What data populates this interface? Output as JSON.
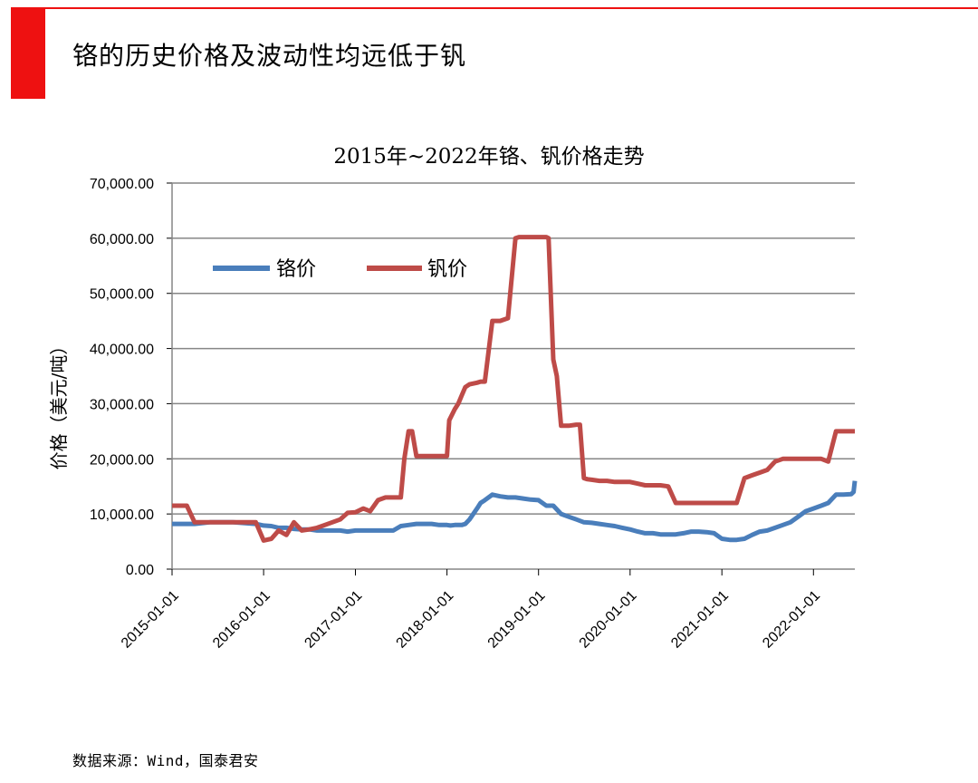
{
  "slide": {
    "title": "铬的历史价格及波动性均远低于钒",
    "source": "数据来源：Wind，国泰君安"
  },
  "colors": {
    "accent": "#ee1111",
    "chromium": "#4a7ebb",
    "vanadium": "#be4b48",
    "grid": "#868686"
  },
  "chart_data": {
    "type": "line",
    "title": "2015年~2022年铬、钒价格走势",
    "xlabel": "",
    "ylabel": "价格（美元/吨）",
    "ylim": [
      0,
      70000
    ],
    "yticks": [
      0,
      10000,
      20000,
      30000,
      40000,
      50000,
      60000,
      70000
    ],
    "ytick_labels": [
      "0.00",
      "10,000.00",
      "20,000.00",
      "30,000.00",
      "40,000.00",
      "50,000.00",
      "60,000.00",
      "70,000.00"
    ],
    "xlim": [
      "2015-01-01",
      "2022-06-15"
    ],
    "xticks": [
      "2015-01-01",
      "2016-01-01",
      "2017-01-01",
      "2018-01-01",
      "2019-01-01",
      "2020-01-01",
      "2021-01-01",
      "2022-01-01"
    ],
    "grid": true,
    "legend_position": "top-left",
    "series": [
      {
        "name": "铬价",
        "x": [
          "2015-01-01",
          "2015-03-01",
          "2015-04-01",
          "2015-06-01",
          "2015-09-01",
          "2015-12-01",
          "2016-01-01",
          "2016-02-01",
          "2016-03-01",
          "2016-04-01",
          "2016-05-01",
          "2016-06-01",
          "2016-07-01",
          "2016-08-01",
          "2016-09-01",
          "2016-10-01",
          "2016-11-01",
          "2016-12-01",
          "2017-01-01",
          "2017-02-01",
          "2017-03-01",
          "2017-04-01",
          "2017-05-01",
          "2017-06-01",
          "2017-07-01",
          "2017-08-01",
          "2017-09-01",
          "2017-10-01",
          "2017-11-01",
          "2017-12-01",
          "2018-01-01",
          "2018-01-15",
          "2018-02-01",
          "2018-02-15",
          "2018-03-01",
          "2018-03-15",
          "2018-04-01",
          "2018-05-01",
          "2018-05-15",
          "2018-06-01",
          "2018-07-01",
          "2018-08-01",
          "2018-09-01",
          "2018-10-01",
          "2018-11-01",
          "2018-12-01",
          "2019-01-01",
          "2019-02-01",
          "2019-03-01",
          "2019-04-01",
          "2019-05-01",
          "2019-06-01",
          "2019-07-01",
          "2019-08-01",
          "2019-09-01",
          "2019-10-01",
          "2019-11-01",
          "2019-12-01",
          "2020-01-01",
          "2020-02-01",
          "2020-03-01",
          "2020-04-01",
          "2020-05-01",
          "2020-06-01",
          "2020-07-01",
          "2020-08-01",
          "2020-09-01",
          "2020-10-01",
          "2020-11-01",
          "2020-12-01",
          "2021-01-01",
          "2021-02-01",
          "2021-03-01",
          "2021-04-01",
          "2021-05-01",
          "2021-06-01",
          "2021-07-01",
          "2021-08-01",
          "2021-09-01",
          "2021-10-01",
          "2021-11-01",
          "2021-12-01",
          "2022-01-01",
          "2022-02-01",
          "2022-03-01",
          "2022-04-01",
          "2022-05-01",
          "2022-06-01",
          "2022-06-10",
          "2022-06-15"
        ],
        "values": [
          8200,
          8200,
          8200,
          8500,
          8500,
          8200,
          7900,
          7800,
          7500,
          7500,
          7300,
          7200,
          7200,
          7000,
          7000,
          7000,
          7000,
          6800,
          7000,
          7000,
          7000,
          7000,
          7000,
          7000,
          7800,
          8000,
          8200,
          8200,
          8200,
          8000,
          8000,
          7900,
          8000,
          8000,
          8000,
          8200,
          9000,
          11000,
          12000,
          12500,
          13500,
          13200,
          13000,
          13000,
          12800,
          12600,
          12500,
          11500,
          11500,
          10000,
          9500,
          9000,
          8500,
          8400,
          8200,
          8000,
          7800,
          7500,
          7200,
          6800,
          6500,
          6500,
          6300,
          6300,
          6300,
          6500,
          6800,
          6800,
          6700,
          6500,
          5500,
          5300,
          5300,
          5500,
          6200,
          6800,
          7000,
          7500,
          8000,
          8500,
          9500,
          10500,
          11000,
          11500,
          12000,
          13500,
          13500,
          13600,
          14000,
          16000
        ]
      },
      {
        "name": "钒价",
        "x": [
          "2015-01-01",
          "2015-02-01",
          "2015-03-01",
          "2015-04-01",
          "2015-06-01",
          "2015-09-01",
          "2015-12-01",
          "2016-01-01",
          "2016-02-01",
          "2016-03-01",
          "2016-04-01",
          "2016-05-01",
          "2016-06-01",
          "2016-07-01",
          "2016-08-01",
          "2016-09-01",
          "2016-10-01",
          "2016-11-01",
          "2016-12-01",
          "2017-01-01",
          "2017-02-01",
          "2017-03-01",
          "2017-04-01",
          "2017-05-01",
          "2017-06-01",
          "2017-07-01",
          "2017-07-15",
          "2017-08-01",
          "2017-08-15",
          "2017-09-01",
          "2017-09-15",
          "2017-10-01",
          "2017-11-01",
          "2017-12-01",
          "2018-01-01",
          "2018-01-10",
          "2018-02-01",
          "2018-02-15",
          "2018-03-01",
          "2018-03-15",
          "2018-04-01",
          "2018-05-01",
          "2018-05-15",
          "2018-06-01",
          "2018-07-01",
          "2018-07-15",
          "2018-08-01",
          "2018-09-01",
          "2018-10-01",
          "2018-10-15",
          "2018-11-01",
          "2018-12-01",
          "2019-01-01",
          "2019-02-01",
          "2019-02-10",
          "2019-03-01",
          "2019-03-15",
          "2019-04-01",
          "2019-05-01",
          "2019-06-01",
          "2019-06-15",
          "2019-07-01",
          "2019-07-15",
          "2019-08-01",
          "2019-09-01",
          "2019-10-01",
          "2019-11-01",
          "2019-12-01",
          "2020-01-01",
          "2020-02-01",
          "2020-03-01",
          "2020-04-01",
          "2020-05-01",
          "2020-06-01",
          "2020-07-01",
          "2020-08-01",
          "2020-09-01",
          "2020-10-01",
          "2020-11-01",
          "2020-12-01",
          "2021-01-01",
          "2021-02-01",
          "2021-03-01",
          "2021-04-01",
          "2021-05-01",
          "2021-06-01",
          "2021-07-01",
          "2021-08-01",
          "2021-09-01",
          "2021-10-01",
          "2021-11-01",
          "2021-12-01",
          "2022-01-01",
          "2022-02-01",
          "2022-03-01",
          "2022-04-01",
          "2022-05-01",
          "2022-06-15"
        ],
        "values": [
          11500,
          11500,
          11500,
          8500,
          8500,
          8500,
          8500,
          5200,
          5500,
          7000,
          6200,
          8500,
          7000,
          7200,
          7500,
          8000,
          8500,
          9000,
          10200,
          10300,
          11000,
          10500,
          12500,
          13000,
          13000,
          13000,
          20000,
          25000,
          25000,
          20500,
          20500,
          20500,
          20500,
          20500,
          20500,
          27000,
          29000,
          30000,
          31500,
          33000,
          33500,
          33800,
          34000,
          34000,
          45000,
          45000,
          45000,
          45500,
          60000,
          60200,
          60200,
          60200,
          60200,
          60200,
          60000,
          38000,
          35000,
          26000,
          26000,
          26200,
          26200,
          16500,
          16300,
          16200,
          16000,
          16000,
          15800,
          15800,
          15800,
          15500,
          15200,
          15200,
          15200,
          15000,
          12000,
          12000,
          12000,
          12000,
          12000,
          12000,
          12000,
          12000,
          12000,
          16500,
          17000,
          17500,
          18000,
          19500,
          20000,
          20000,
          20000,
          20000,
          20000,
          20000,
          19500,
          25000,
          25000,
          25000
        ]
      }
    ]
  }
}
